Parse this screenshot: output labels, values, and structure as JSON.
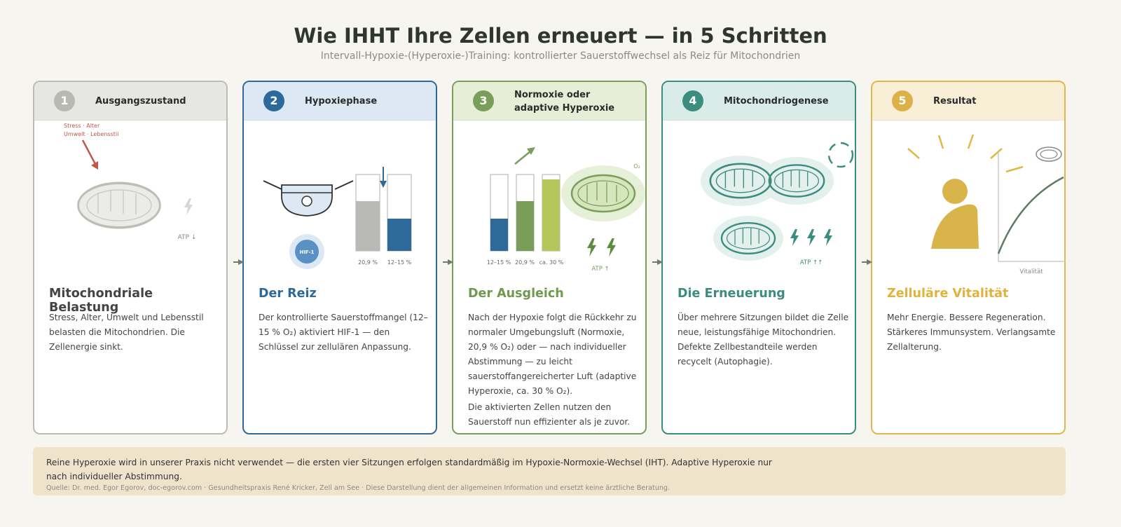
{
  "header": {
    "title": "Wie IHHT Ihre Zellen erneuert — in 5 Schritten",
    "subtitle": "Intervall-Hypoxie-(Hyperoxie-)Training: kontrollierter Sauerstoffwechsel als Reiz für Mitochondrien"
  },
  "steps": [
    {
      "number": 1,
      "label": "Ausgangszustand",
      "heading": "Mitochondriale Belastung",
      "paragraphs": [
        "Stress, Alter, Umwelt und Lebensstil belasten die Mitochondrien. Die Zellenergie sinkt."
      ],
      "illustration_labels": [
        "Stress · Alter",
        "Umwelt · Lebensstil",
        "ATP ↓"
      ]
    },
    {
      "number": 2,
      "label": "Hypoxiephase",
      "heading": "Der Reiz",
      "paragraphs": [
        "Der kontrollierte Sauerstoffmangel (12–15 % O₂) aktiviert HIF-1 — den Schlüssel zur zellulären Anpassung."
      ],
      "illustration_labels": [
        "HIF-1",
        "20,9 %",
        "12–15 %"
      ]
    },
    {
      "number": 3,
      "label": "Normoxie oder adaptive Hyperoxie",
      "heading": "Der Ausgleich",
      "paragraphs": [
        "Nach der Hypoxie folgt die Rückkehr zu normaler Umgebungsluft (Normoxie, 20,9 % O₂) oder — nach individueller Abstimmung — zu leicht sauerstoffangereicherter Luft (adaptive Hyperoxie, ca. 30 % O₂).",
        "Die aktivierten Zellen nutzen den Sauerstoff nun effizienter als je zuvor."
      ],
      "illustration_labels": [
        "12–15 %",
        "20,9 %",
        "ca. 30 %",
        "O₂",
        "ATP ↑"
      ]
    },
    {
      "number": 4,
      "label": "Mitochondriogenese",
      "heading": "Die Erneuerung",
      "paragraphs": [
        "Über mehrere Sitzungen bildet die Zelle neue, leistungsfähige Mitochondrien. Defekte Zellbestandteile werden recycelt (Autophagie)."
      ],
      "illustration_labels": [
        "ATP ↑↑"
      ]
    },
    {
      "number": 5,
      "label": "Resultat",
      "heading": "Zelluläre Vitalität",
      "paragraphs": [
        "Mehr Energie. Bessere Regeneration. Stärkeres Immunsystem. Verlangsamte Zellalterung."
      ],
      "illustration_labels": [
        "Vitalität"
      ]
    }
  ],
  "footer": {
    "note": "Reine Hyperoxie wird in unserer Praxis nicht verwendet — die ersten vier Sitzungen erfolgen standardmäßig im Hypoxie-Normoxie-Wechsel (IHT). Adaptive Hyperoxie nur nach individueller Abstimmung.",
    "source": "Quelle: Dr. med. Egor Egorov, doc-egorov.com · Gesundheitspraxis René Kricker, Zell am See · Diese Darstellung dient der allgemeinen Information und ersetzt keine ärztliche Beratung."
  }
}
